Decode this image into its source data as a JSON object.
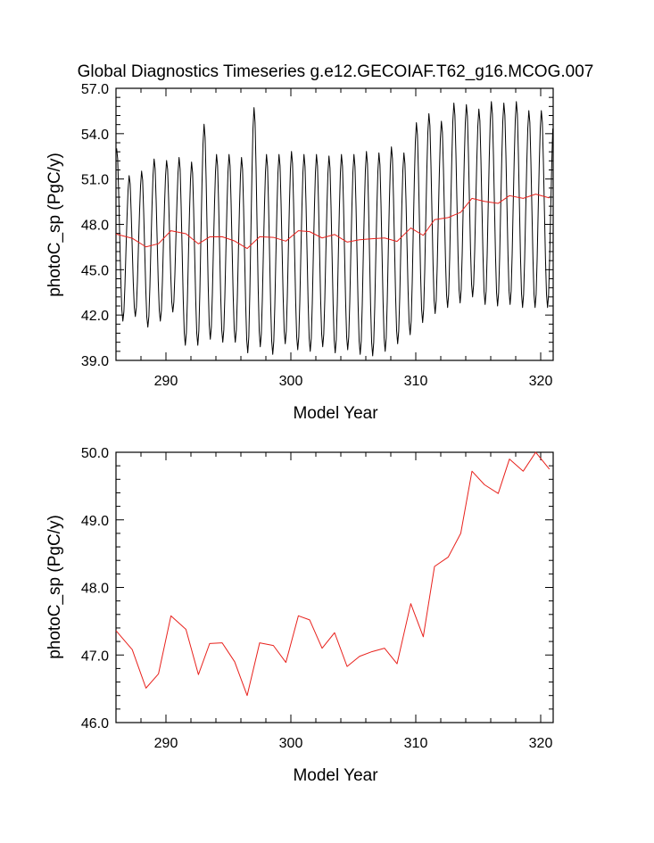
{
  "figure": {
    "title": "Global Diagnostics Timeseries g.e12.GECOIAF.T62_g16.MCOG.007"
  },
  "colors": {
    "monthly": "#000000",
    "annual": "#e8211c",
    "axis": "#000000"
  },
  "chart_data": [
    {
      "id": "monthly",
      "type": "line",
      "title": "Global Diagnostics Timeseries g.e12.GECOIAF.T62_g16.MCOG.007",
      "xlabel": "Model Year",
      "ylabel": "photoC_sp (PgC/y)",
      "xlim": [
        286.0,
        321.0
      ],
      "ylim": [
        39.0,
        57.0
      ],
      "xticks": [
        290,
        300,
        310,
        320
      ],
      "xtick_labels": [
        "290",
        "300",
        "310",
        "320"
      ],
      "yticks": [
        39.0,
        42.0,
        45.0,
        48.0,
        51.0,
        54.0,
        57.0
      ],
      "ytick_labels": [
        "39.0",
        "42.0",
        "45.0",
        "48.0",
        "51.0",
        "54.0",
        "57.0"
      ],
      "series": [
        {
          "name": "monthly",
          "color": "#000000",
          "peaks": [
            52.8,
            51.0,
            51.3,
            52.1,
            52.0,
            52.2,
            51.9,
            54.4,
            52.4,
            52.4,
            52.2,
            55.5,
            52.4,
            52.4,
            52.6,
            52.4,
            52.4,
            52.3,
            52.4,
            52.4,
            52.6,
            52.5,
            52.9,
            52.5,
            54.5,
            55.1,
            54.6,
            55.8,
            55.7,
            55.4,
            55.9,
            55.8,
            55.9,
            55.3
          ],
          "troughs": [
            41.6,
            41.9,
            41.2,
            41.6,
            42.2,
            40.0,
            40.0,
            40.4,
            40.2,
            40.2,
            39.5,
            39.9,
            39.4,
            40.1,
            39.7,
            39.6,
            39.9,
            39.5,
            39.7,
            39.4,
            39.3,
            39.6,
            40.1,
            40.7,
            41.5,
            42.1,
            42.5,
            42.8,
            43.2,
            42.7,
            42.6,
            42.7,
            42.5
          ]
        },
        {
          "name": "annual",
          "color": "#e8211c",
          "x": [
            286.0,
            287.3,
            288.4,
            289.4,
            290.4,
            291.6,
            292.6,
            293.5,
            294.5,
            295.5,
            296.5,
            297.5,
            298.6,
            299.6,
            300.6,
            301.5,
            302.5,
            303.5,
            304.5,
            305.5,
            306.5,
            307.5,
            308.5,
            309.6,
            310.6,
            311.5,
            312.6,
            313.6,
            314.5,
            315.5,
            316.6,
            317.5,
            318.6,
            319.6,
            320.7
          ],
          "y": [
            47.36,
            47.08,
            46.51,
            46.72,
            47.58,
            47.38,
            46.71,
            47.17,
            47.18,
            46.9,
            46.4,
            47.18,
            47.14,
            46.89,
            47.58,
            47.52,
            47.1,
            47.33,
            46.83,
            46.98,
            47.05,
            47.1,
            46.87,
            47.76,
            47.27,
            48.31,
            48.45,
            48.8,
            49.72,
            49.52,
            49.39,
            49.9,
            49.72,
            50.0,
            49.75
          ]
        }
      ]
    },
    {
      "id": "annual",
      "type": "line",
      "title": "",
      "xlabel": "Model Year",
      "ylabel": "photoC_sp (PgC/y)",
      "xlim": [
        286.0,
        321.0
      ],
      "ylim": [
        46.0,
        50.0
      ],
      "xticks": [
        290,
        300,
        310,
        320
      ],
      "xtick_labels": [
        "290",
        "300",
        "310",
        "320"
      ],
      "yticks": [
        46.0,
        47.0,
        48.0,
        49.0,
        50.0
      ],
      "ytick_labels": [
        "46.0",
        "47.0",
        "48.0",
        "49.0",
        "50.0"
      ],
      "series": [
        {
          "name": "annual",
          "color": "#e8211c",
          "x": [
            286.0,
            287.3,
            288.4,
            289.4,
            290.4,
            291.6,
            292.6,
            293.5,
            294.5,
            295.5,
            296.5,
            297.5,
            298.6,
            299.6,
            300.6,
            301.5,
            302.5,
            303.5,
            304.5,
            305.5,
            306.5,
            307.5,
            308.5,
            309.6,
            310.6,
            311.5,
            312.6,
            313.6,
            314.5,
            315.5,
            316.6,
            317.5,
            318.6,
            319.6,
            320.7
          ],
          "y": [
            47.36,
            47.08,
            46.51,
            46.72,
            47.58,
            47.38,
            46.71,
            47.17,
            47.18,
            46.9,
            46.4,
            47.18,
            47.14,
            46.89,
            47.58,
            47.52,
            47.1,
            47.33,
            46.83,
            46.98,
            47.05,
            47.1,
            46.87,
            47.76,
            47.27,
            48.31,
            48.45,
            48.8,
            49.72,
            49.52,
            49.39,
            49.9,
            49.72,
            50.0,
            49.75
          ]
        }
      ]
    }
  ]
}
